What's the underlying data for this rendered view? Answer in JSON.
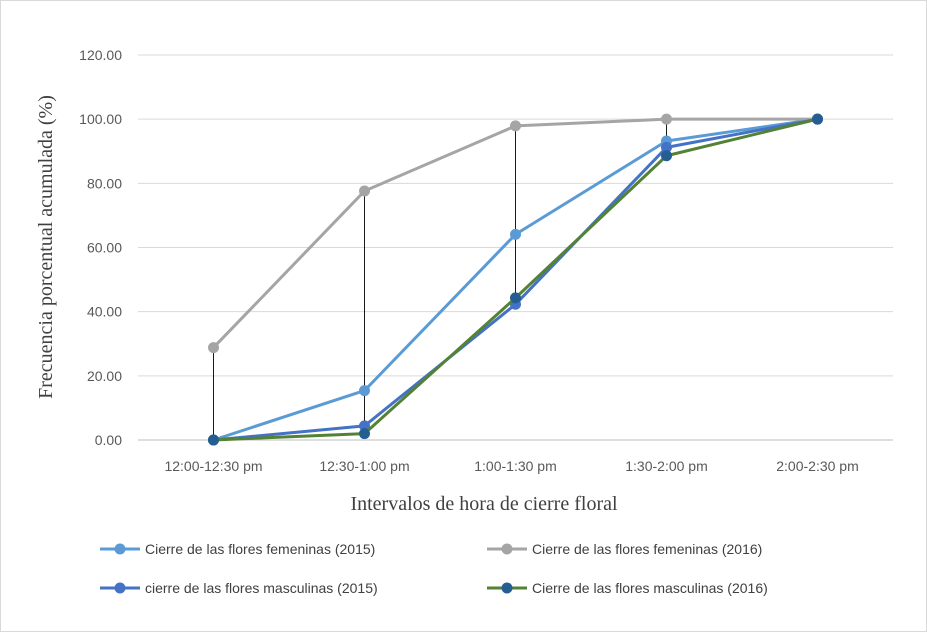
{
  "chart_data": {
    "type": "line",
    "title": "",
    "xlabel": "Intervalos de hora de cierre floral",
    "ylabel": "Frecuencia porcentual acumulada (%)",
    "ylim": [
      0,
      120
    ],
    "yticks": [
      0,
      20,
      40,
      60,
      80,
      100,
      120
    ],
    "ytick_labels": [
      "0.00",
      "20.00",
      "40.00",
      "60.00",
      "80.00",
      "100.00",
      "120.00"
    ],
    "categories": [
      "12:00-12:30 pm",
      "12:30-1:00 pm",
      "1:00-1:30 pm",
      "1:30-2:00 pm",
      "2:00-2:30 pm"
    ],
    "grid": true,
    "legend_position": "bottom",
    "series": [
      {
        "name": "Cierre de las flores femeninas (2015)",
        "color": "#5b9bd5",
        "values": [
          0,
          15.4,
          64.1,
          93.2,
          100
        ]
      },
      {
        "name": "Cierre de las flores femeninas (2016)",
        "color": "#a5a5a5",
        "values": [
          28.8,
          77.6,
          97.9,
          100,
          100
        ]
      },
      {
        "name": "cierre de las flores masculinas (2015)",
        "color": "#4472c4",
        "values": [
          0,
          4.4,
          42.3,
          91.2,
          100
        ]
      },
      {
        "name": "Cierre de las flores masculinas (2016)",
        "color": "#548235",
        "marker_color": "#255e91",
        "values": [
          0,
          2.0,
          44.3,
          88.6,
          100
        ]
      }
    ],
    "high_low_lines": true
  }
}
